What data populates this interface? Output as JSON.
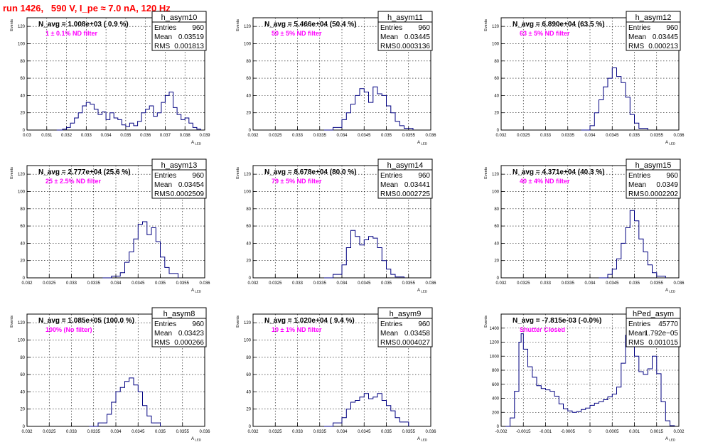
{
  "run_title": "run 1426,   590 V, I_pe ≈ 7.0 nA, 120 Hz",
  "colors": {
    "line": "#000080",
    "title": "#ff0000",
    "annotation": "#ff00ff",
    "grid": "#000000"
  },
  "chart_data": [
    {
      "type": "histogram",
      "name": "h_asym10",
      "entries": "960",
      "mean": "0.03519",
      "rms": "0.001813",
      "navg_text": "N_avg = 1.008e+03 ( 0.9 %)",
      "filter_text": "1 ± 0.1% ND filter",
      "xlabel": "A_LED",
      "ylabel": "Events",
      "xlim": [
        0.03,
        0.039
      ],
      "ylim": [
        0,
        130
      ],
      "xticks": [
        0.03,
        0.031,
        0.032,
        0.033,
        0.034,
        0.035,
        0.036,
        0.037,
        0.038,
        0.039
      ],
      "xticklabels": [
        "0.03",
        "0.031",
        "0.032",
        "0.033",
        "0.034",
        "0.035",
        "0.036",
        "0.037",
        "0.038",
        "0.039"
      ],
      "yticks": [
        0,
        20,
        40,
        60,
        80,
        100,
        120
      ],
      "curve": [
        [
          0.0315,
          0
        ],
        [
          0.0318,
          1
        ],
        [
          0.032,
          3
        ],
        [
          0.0322,
          8
        ],
        [
          0.0324,
          14
        ],
        [
          0.0326,
          20
        ],
        [
          0.0328,
          28
        ],
        [
          0.033,
          32
        ],
        [
          0.0332,
          30
        ],
        [
          0.0334,
          24
        ],
        [
          0.0336,
          18
        ],
        [
          0.0338,
          21
        ],
        [
          0.034,
          12
        ],
        [
          0.0342,
          20
        ],
        [
          0.0344,
          14
        ],
        [
          0.0346,
          12
        ],
        [
          0.0348,
          6
        ],
        [
          0.035,
          4
        ],
        [
          0.0352,
          8
        ],
        [
          0.0354,
          5
        ],
        [
          0.0356,
          10
        ],
        [
          0.0358,
          20
        ],
        [
          0.036,
          24
        ],
        [
          0.0362,
          28
        ],
        [
          0.0364,
          16
        ],
        [
          0.0366,
          20
        ],
        [
          0.0368,
          32
        ],
        [
          0.037,
          40
        ],
        [
          0.0372,
          44
        ],
        [
          0.0374,
          26
        ],
        [
          0.0376,
          18
        ],
        [
          0.0378,
          12
        ],
        [
          0.038,
          14
        ],
        [
          0.0382,
          8
        ],
        [
          0.0384,
          3
        ],
        [
          0.0386,
          1
        ],
        [
          0.0388,
          0
        ]
      ]
    },
    {
      "type": "histogram",
      "name": "h_asym11",
      "entries": "960",
      "mean": "0.03445",
      "rms": "0.0003136",
      "navg_text": "N_avg = 5.466e+04 (50.4 %)",
      "filter_text": "50 ± 5% ND filter",
      "xlabel": "A_LED",
      "ylabel": "Events",
      "xlim": [
        0.032,
        0.036
      ],
      "ylim": [
        0,
        130
      ],
      "xticks": [
        0.032,
        0.0325,
        0.033,
        0.0335,
        0.034,
        0.0345,
        0.035,
        0.0355,
        0.036
      ],
      "xticklabels": [
        "0.032",
        "0.0325",
        "0.033",
        "0.0335",
        "0.034",
        "0.0345",
        "0.035",
        "0.0355",
        "0.036"
      ],
      "yticks": [
        0,
        20,
        40,
        60,
        80,
        100,
        120
      ],
      "curve": [
        [
          0.0336,
          0
        ],
        [
          0.0338,
          3
        ],
        [
          0.034,
          12
        ],
        [
          0.0341,
          20
        ],
        [
          0.0342,
          30
        ],
        [
          0.0343,
          40
        ],
        [
          0.0344,
          48
        ],
        [
          0.0345,
          44
        ],
        [
          0.0346,
          32
        ],
        [
          0.0347,
          50
        ],
        [
          0.0348,
          42
        ],
        [
          0.0349,
          40
        ],
        [
          0.035,
          28
        ],
        [
          0.0351,
          20
        ],
        [
          0.0352,
          10
        ],
        [
          0.0353,
          5
        ],
        [
          0.0354,
          2
        ],
        [
          0.0356,
          0
        ]
      ]
    },
    {
      "type": "histogram",
      "name": "h_asym12",
      "entries": "960",
      "mean": "0.03445",
      "rms": "0.000213",
      "navg_text": "N_avg = 6.890e+04 (63.5 %)",
      "filter_text": "63 ± 5% ND filter",
      "xlabel": "A_LED",
      "ylabel": "Events",
      "xlim": [
        0.032,
        0.036
      ],
      "ylim": [
        0,
        130
      ],
      "xticks": [
        0.032,
        0.0325,
        0.033,
        0.0335,
        0.034,
        0.0345,
        0.035,
        0.0355,
        0.036
      ],
      "xticklabels": [
        "0.032",
        "0.0325",
        "0.033",
        "0.0335",
        "0.034",
        "0.0345",
        "0.035",
        "0.0355",
        "0.036"
      ],
      "yticks": [
        0,
        20,
        40,
        60,
        80,
        100,
        120
      ],
      "curve": [
        [
          0.0338,
          0
        ],
        [
          0.034,
          5
        ],
        [
          0.0341,
          20
        ],
        [
          0.0342,
          35
        ],
        [
          0.0343,
          50
        ],
        [
          0.0344,
          60
        ],
        [
          0.0345,
          72
        ],
        [
          0.0346,
          62
        ],
        [
          0.0347,
          55
        ],
        [
          0.0348,
          38
        ],
        [
          0.0349,
          18
        ],
        [
          0.035,
          8
        ],
        [
          0.0351,
          2
        ],
        [
          0.0353,
          0
        ]
      ]
    },
    {
      "type": "histogram",
      "name": "h_asym13",
      "entries": "960",
      "mean": "0.03454",
      "rms": "0.0002509",
      "navg_text": "N_avg = 2.777e+04 (25.6 %)",
      "filter_text": "25 ± 2.5% ND filter",
      "xlabel": "A_LED",
      "ylabel": "Events",
      "xlim": [
        0.032,
        0.036
      ],
      "ylim": [
        0,
        130
      ],
      "xticks": [
        0.032,
        0.0325,
        0.033,
        0.0335,
        0.034,
        0.0345,
        0.035,
        0.0355,
        0.036
      ],
      "xticklabels": [
        "0.032",
        "0.0325",
        "0.033",
        "0.0335",
        "0.034",
        "0.0345",
        "0.035",
        "0.0355",
        "0.036"
      ],
      "yticks": [
        0,
        20,
        40,
        60,
        80,
        100,
        120
      ],
      "curve": [
        [
          0.0337,
          0
        ],
        [
          0.0339,
          2
        ],
        [
          0.0341,
          6
        ],
        [
          0.0342,
          18
        ],
        [
          0.0343,
          30
        ],
        [
          0.0344,
          45
        ],
        [
          0.0345,
          62
        ],
        [
          0.0346,
          65
        ],
        [
          0.0347,
          50
        ],
        [
          0.0348,
          58
        ],
        [
          0.0349,
          42
        ],
        [
          0.035,
          24
        ],
        [
          0.0351,
          12
        ],
        [
          0.0352,
          5
        ],
        [
          0.0354,
          0
        ]
      ]
    },
    {
      "type": "histogram",
      "name": "h_asym14",
      "entries": "960",
      "mean": "0.03441",
      "rms": "0.0002725",
      "navg_text": "N_avg = 8.678e+04 (80.0 %)",
      "filter_text": "79 ± 5% ND filter",
      "xlabel": "A_LED",
      "ylabel": "Events",
      "xlim": [
        0.032,
        0.036
      ],
      "ylim": [
        0,
        130
      ],
      "xticks": [
        0.032,
        0.0325,
        0.033,
        0.0335,
        0.034,
        0.0345,
        0.035,
        0.0355,
        0.036
      ],
      "xticklabels": [
        "0.032",
        "0.0325",
        "0.033",
        "0.0335",
        "0.034",
        "0.0345",
        "0.035",
        "0.0355",
        "0.036"
      ],
      "yticks": [
        0,
        20,
        40,
        60,
        80,
        100,
        120
      ],
      "curve": [
        [
          0.0336,
          0
        ],
        [
          0.0338,
          4
        ],
        [
          0.034,
          15
        ],
        [
          0.0341,
          35
        ],
        [
          0.0342,
          55
        ],
        [
          0.0343,
          48
        ],
        [
          0.0344,
          38
        ],
        [
          0.0345,
          44
        ],
        [
          0.0346,
          48
        ],
        [
          0.0347,
          46
        ],
        [
          0.0348,
          35
        ],
        [
          0.0349,
          20
        ],
        [
          0.035,
          10
        ],
        [
          0.0351,
          4
        ],
        [
          0.0352,
          1
        ],
        [
          0.0354,
          0
        ]
      ]
    },
    {
      "type": "histogram",
      "name": "h_asym15",
      "entries": "960",
      "mean": "0.0349",
      "rms": "0.0002202",
      "navg_text": "N_avg = 4.371e+04 (40.3 %)",
      "filter_text": "40 ± 4% ND filter",
      "xlabel": "A_LED",
      "ylabel": "Events",
      "xlim": [
        0.032,
        0.036
      ],
      "ylim": [
        0,
        130
      ],
      "xticks": [
        0.032,
        0.0325,
        0.033,
        0.0335,
        0.034,
        0.0345,
        0.035,
        0.0355,
        0.036
      ],
      "xticklabels": [
        "0.032",
        "0.0325",
        "0.033",
        "0.0335",
        "0.034",
        "0.0345",
        "0.035",
        "0.0355",
        "0.036"
      ],
      "yticks": [
        0,
        20,
        40,
        60,
        80,
        100,
        120
      ],
      "curve": [
        [
          0.0342,
          0
        ],
        [
          0.0344,
          4
        ],
        [
          0.0345,
          10
        ],
        [
          0.0346,
          22
        ],
        [
          0.0347,
          40
        ],
        [
          0.0348,
          58
        ],
        [
          0.0349,
          78
        ],
        [
          0.035,
          66
        ],
        [
          0.0351,
          45
        ],
        [
          0.0352,
          30
        ],
        [
          0.0353,
          15
        ],
        [
          0.0354,
          6
        ],
        [
          0.0355,
          2
        ],
        [
          0.0357,
          0
        ]
      ]
    },
    {
      "type": "histogram",
      "name": "h_asym8",
      "entries": "960",
      "mean": "0.03423",
      "rms": "0.000266",
      "navg_text": "N_avg = 1.085e+05 (100.0 %)",
      "filter_text": "100% (No filter)",
      "xlabel": "A_LED",
      "ylabel": "Events",
      "xlim": [
        0.032,
        0.036
      ],
      "ylim": [
        0,
        130
      ],
      "xticks": [
        0.032,
        0.0325,
        0.033,
        0.0335,
        0.034,
        0.0345,
        0.035,
        0.0355,
        0.036
      ],
      "xticklabels": [
        "0.032",
        "0.0325",
        "0.033",
        "0.0335",
        "0.034",
        "0.0345",
        "0.035",
        "0.0355",
        "0.036"
      ],
      "yticks": [
        0,
        20,
        40,
        60,
        80,
        100,
        120
      ],
      "curve": [
        [
          0.0334,
          0
        ],
        [
          0.0336,
          4
        ],
        [
          0.0338,
          14
        ],
        [
          0.0339,
          28
        ],
        [
          0.034,
          40
        ],
        [
          0.0341,
          45
        ],
        [
          0.0342,
          52
        ],
        [
          0.0343,
          56
        ],
        [
          0.0344,
          48
        ],
        [
          0.0345,
          40
        ],
        [
          0.0346,
          24
        ],
        [
          0.0347,
          12
        ],
        [
          0.0348,
          4
        ],
        [
          0.035,
          0
        ]
      ]
    },
    {
      "type": "histogram",
      "name": "h_asym9",
      "entries": "960",
      "mean": "0.03458",
      "rms": "0.0004027",
      "navg_text": "N_avg = 1.020e+04 ( 9.4 %)",
      "filter_text": "10 ± 1% ND filter",
      "xlabel": "A_LED",
      "ylabel": "Events",
      "xlim": [
        0.032,
        0.036
      ],
      "ylim": [
        0,
        130
      ],
      "xticks": [
        0.032,
        0.0325,
        0.033,
        0.0335,
        0.034,
        0.0345,
        0.035,
        0.0355,
        0.036
      ],
      "xticklabels": [
        "0.032",
        "0.0325",
        "0.033",
        "0.0335",
        "0.034",
        "0.0345",
        "0.035",
        "0.0355",
        "0.036"
      ],
      "yticks": [
        0,
        20,
        40,
        60,
        80,
        100,
        120
      ],
      "curve": [
        [
          0.0336,
          0
        ],
        [
          0.0338,
          4
        ],
        [
          0.034,
          10
        ],
        [
          0.0341,
          20
        ],
        [
          0.0342,
          28
        ],
        [
          0.0343,
          30
        ],
        [
          0.0344,
          34
        ],
        [
          0.0345,
          38
        ],
        [
          0.0346,
          32
        ],
        [
          0.0347,
          34
        ],
        [
          0.0348,
          38
        ],
        [
          0.0349,
          30
        ],
        [
          0.035,
          24
        ],
        [
          0.0351,
          18
        ],
        [
          0.0352,
          10
        ],
        [
          0.0353,
          5
        ],
        [
          0.0355,
          0
        ]
      ]
    },
    {
      "type": "histogram",
      "name": "hPed_asym",
      "entries": "45770",
      "mean": "1.792e−05",
      "rms": "0.001015",
      "navg_text": "N_avg = -7.815e-03 (-0.0%)",
      "filter_text": "Shutter Closed",
      "xlabel": "A_LED",
      "ylabel": "Events",
      "xlim": [
        -0.002,
        0.002
      ],
      "ylim": [
        0,
        1600
      ],
      "xticks": [
        -0.002,
        -0.0015,
        -0.001,
        -0.0005,
        0,
        0.0005,
        0.001,
        0.0015,
        0.002
      ],
      "xticklabels": [
        "-0.002",
        "-0.0015",
        "-0.001",
        "-0.0005",
        "0",
        "0.0005",
        "0.001",
        "0.0015",
        "0.002"
      ],
      "yticks": [
        0,
        200,
        400,
        600,
        800,
        1000,
        1200,
        1400
      ],
      "curve": [
        [
          -0.0019,
          0
        ],
        [
          -0.0018,
          120
        ],
        [
          -0.0017,
          500
        ],
        [
          -0.0016,
          1200
        ],
        [
          -0.00155,
          1320
        ],
        [
          -0.0015,
          1100
        ],
        [
          -0.0014,
          850
        ],
        [
          -0.0013,
          700
        ],
        [
          -0.0012,
          580
        ],
        [
          -0.0011,
          540
        ],
        [
          -0.001,
          520
        ],
        [
          -0.0009,
          500
        ],
        [
          -0.0008,
          430
        ],
        [
          -0.0007,
          320
        ],
        [
          -0.0006,
          250
        ],
        [
          -0.0005,
          220
        ],
        [
          -0.0004,
          200
        ],
        [
          -0.0003,
          210
        ],
        [
          -0.0002,
          240
        ],
        [
          -0.0001,
          260
        ],
        [
          0.0,
          300
        ],
        [
          0.0001,
          330
        ],
        [
          0.0002,
          350
        ],
        [
          0.0003,
          380
        ],
        [
          0.0004,
          420
        ],
        [
          0.0005,
          460
        ],
        [
          0.0006,
          560
        ],
        [
          0.0007,
          900
        ],
        [
          0.0008,
          1300
        ],
        [
          0.00085,
          1550
        ],
        [
          0.0009,
          1400
        ],
        [
          0.001,
          1000
        ],
        [
          0.0011,
          780
        ],
        [
          0.0012,
          740
        ],
        [
          0.0013,
          820
        ],
        [
          0.0014,
          1000
        ],
        [
          0.0015,
          750
        ],
        [
          0.0016,
          350
        ],
        [
          0.0017,
          80
        ],
        [
          0.0018,
          10
        ],
        [
          0.0019,
          0
        ]
      ]
    }
  ]
}
